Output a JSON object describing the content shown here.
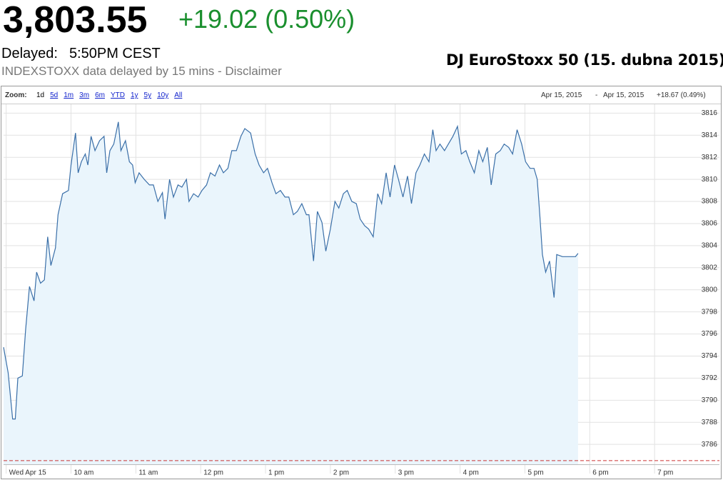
{
  "header": {
    "price": "3,803.55",
    "change": "+19.02 (0.50%)",
    "delayed_label": "Delayed:",
    "delayed_time": "5:50PM CEST",
    "disclaimer": "INDEXSTOXX data delayed by 15 mins - Disclaimer"
  },
  "toolbar": {
    "zoom_label": "Zoom:",
    "zoom_options": [
      "1d",
      "5d",
      "1m",
      "3m",
      "6m",
      "YTD",
      "1y",
      "5y",
      "10y",
      "All"
    ],
    "range_start": "Apr 15, 2015",
    "range_sep": "-",
    "range_end": "Apr 15, 2015",
    "range_change": "+18.67 (0.49%)"
  },
  "chart_data": {
    "type": "area",
    "title": "DJ EuroStoxx 50 (15. dubna 2015)",
    "x": [
      8.96,
      9.03,
      9.1,
      9.14,
      9.18,
      9.25,
      9.3,
      9.36,
      9.43,
      9.47,
      9.53,
      9.59,
      9.64,
      9.69,
      9.76,
      9.8,
      9.87,
      9.96,
      10.0,
      10.07,
      10.11,
      10.16,
      10.22,
      10.26,
      10.31,
      10.37,
      10.44,
      10.51,
      10.55,
      10.6,
      10.66,
      10.73,
      10.77,
      10.84,
      10.9,
      10.95,
      10.99,
      11.05,
      11.13,
      11.21,
      11.27,
      11.34,
      11.41,
      11.45,
      11.52,
      11.58,
      11.65,
      11.71,
      11.78,
      11.82,
      11.89,
      11.96,
      12.02,
      12.09,
      12.15,
      12.22,
      12.29,
      12.35,
      12.42,
      12.48,
      12.55,
      12.62,
      12.68,
      12.77,
      12.84,
      12.9,
      12.97,
      13.03,
      13.1,
      13.16,
      13.23,
      13.3,
      13.36,
      13.43,
      13.49,
      13.56,
      13.63,
      13.67,
      13.74,
      13.8,
      13.87,
      13.93,
      14.0,
      14.07,
      14.13,
      14.2,
      14.26,
      14.33,
      14.4,
      14.46,
      14.53,
      14.59,
      14.66,
      14.73,
      14.79,
      14.86,
      14.92,
      14.99,
      15.05,
      15.12,
      15.19,
      15.25,
      15.32,
      15.38,
      15.45,
      15.52,
      15.58,
      15.63,
      15.69,
      15.76,
      15.82,
      15.89,
      15.96,
      16.02,
      16.09,
      16.15,
      16.22,
      16.29,
      16.35,
      16.42,
      16.48,
      16.55,
      16.62,
      16.68,
      16.75,
      16.81,
      16.88,
      16.95,
      17.01,
      17.08,
      17.14,
      17.19,
      17.23,
      17.27,
      17.32,
      17.38,
      17.45,
      17.49,
      17.58,
      17.69,
      17.78,
      17.82
    ],
    "series": [
      {
        "color": "#3a6fa8",
        "values": [
          3794.8,
          3792.5,
          3788.3,
          3788.3,
          3792,
          3792.2,
          3796.4,
          3800.3,
          3799,
          3801.6,
          3800.6,
          3800.9,
          3804.8,
          3802.2,
          3803.8,
          3806.8,
          3808.7,
          3809,
          3811.3,
          3814.2,
          3810.6,
          3811.6,
          3812.3,
          3811.3,
          3813.9,
          3812.6,
          3813.5,
          3813.9,
          3810.6,
          3812.6,
          3813.2,
          3815.2,
          3812.6,
          3813.5,
          3811.6,
          3811.3,
          3809.7,
          3810.6,
          3810,
          3809.5,
          3809.5,
          3808,
          3808.8,
          3806.4,
          3810,
          3808.4,
          3809.5,
          3809.3,
          3810,
          3808,
          3808.7,
          3808.4,
          3809,
          3809.5,
          3810.6,
          3810.3,
          3811.3,
          3810.6,
          3811,
          3812.6,
          3812.6,
          3813.9,
          3814.6,
          3814.2,
          3812.3,
          3811.3,
          3810.6,
          3811,
          3809.7,
          3808.7,
          3809,
          3808.4,
          3808.4,
          3806.8,
          3807.1,
          3807.8,
          3806.8,
          3806.8,
          3802.6,
          3807.1,
          3806.1,
          3803.5,
          3805.5,
          3808,
          3807.4,
          3808.7,
          3809,
          3808,
          3807.8,
          3806.4,
          3805.8,
          3805.5,
          3804.8,
          3808.7,
          3807.8,
          3810.6,
          3808.4,
          3811.3,
          3810,
          3808.4,
          3810.3,
          3807.8,
          3810.6,
          3811.3,
          3812.3,
          3811.6,
          3814.5,
          3812.6,
          3813.2,
          3812.6,
          3813.2,
          3813.9,
          3814.8,
          3812.3,
          3812.6,
          3811.6,
          3810.6,
          3812.6,
          3811.6,
          3812.9,
          3809.5,
          3812.3,
          3812.6,
          3813.2,
          3812.9,
          3812.3,
          3814.5,
          3813.2,
          3811.6,
          3811,
          3811,
          3810,
          3806.8,
          3803.2,
          3801.6,
          3802.6,
          3799.3,
          3803.2,
          3803,
          3803,
          3803,
          3803.3
        ]
      }
    ],
    "area_color": "#eaf5fc",
    "previous_close": 3784.53,
    "previous_close_color": "#cc3333",
    "xlim": [
      8.96,
      20
    ],
    "ylim": [
      3784.2,
      3816.8
    ],
    "xticks": [
      {
        "value": 9,
        "label": "Wed Apr 15"
      },
      {
        "value": 10,
        "label": "10 am"
      },
      {
        "value": 11,
        "label": "11 am"
      },
      {
        "value": 12,
        "label": "12 pm"
      },
      {
        "value": 13,
        "label": "1 pm"
      },
      {
        "value": 14,
        "label": "2 pm"
      },
      {
        "value": 15,
        "label": "3 pm"
      },
      {
        "value": 16,
        "label": "4 pm"
      },
      {
        "value": 17,
        "label": "5 pm"
      },
      {
        "value": 18,
        "label": "6 pm"
      },
      {
        "value": 19,
        "label": "7 pm"
      }
    ],
    "yticks": [
      3786,
      3788,
      3790,
      3792,
      3794,
      3796,
      3798,
      3800,
      3802,
      3804,
      3806,
      3808,
      3810,
      3812,
      3814,
      3816
    ],
    "grid": true
  }
}
